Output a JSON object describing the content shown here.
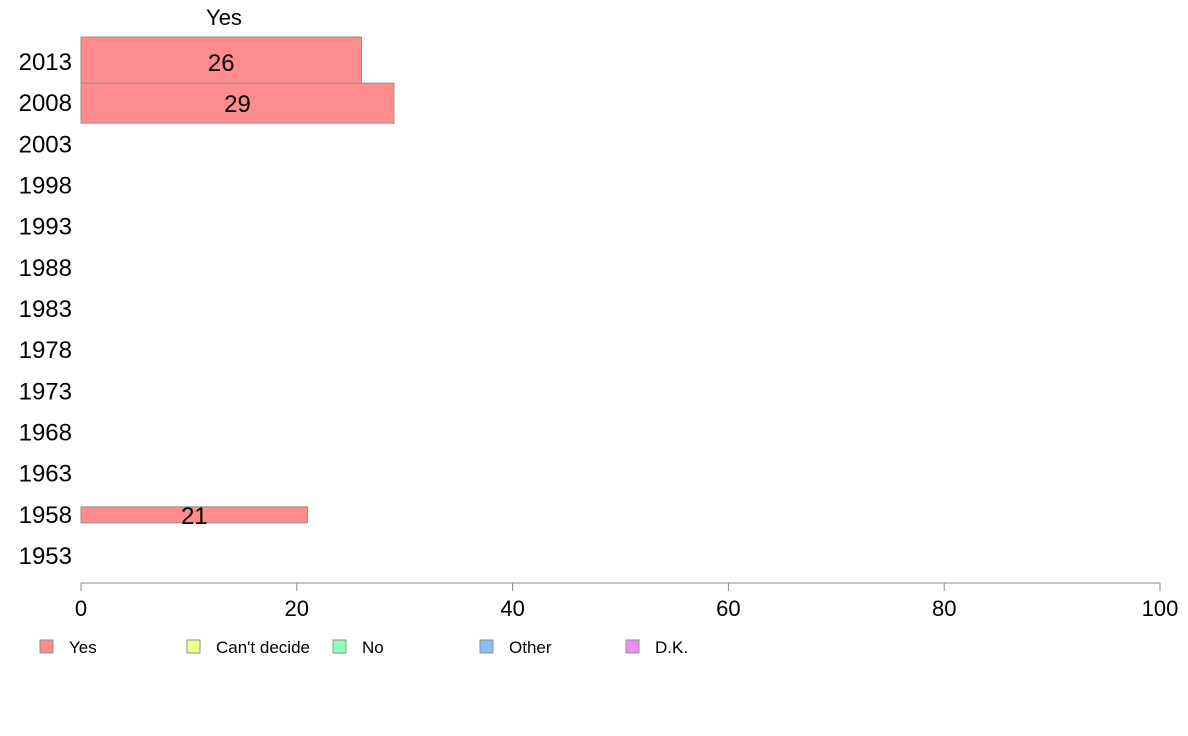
{
  "chart_data": {
    "type": "bar",
    "orientation": "horizontal",
    "title": "",
    "column_header": "Yes",
    "categories": [
      "2013",
      "2008",
      "2003",
      "1998",
      "1993",
      "1988",
      "1983",
      "1978",
      "1973",
      "1968",
      "1963",
      "1958",
      "1953"
    ],
    "series": [
      {
        "name": "Yes",
        "values": [
          26,
          29,
          null,
          null,
          null,
          null,
          null,
          null,
          null,
          null,
          null,
          21,
          null
        ],
        "labels": [
          "26",
          "29",
          "",
          "",
          "",
          "",
          "",
          "",
          "",
          "",
          "",
          "21",
          ""
        ],
        "color": "#ff8c8c"
      },
      {
        "name": "Can't decide",
        "values": [
          null,
          null,
          null,
          null,
          null,
          null,
          null,
          null,
          null,
          null,
          null,
          null,
          null
        ],
        "color": "#eeff8c"
      },
      {
        "name": "No",
        "values": [
          null,
          null,
          null,
          null,
          null,
          null,
          null,
          null,
          null,
          null,
          null,
          null,
          null
        ],
        "color": "#8cffbe"
      },
      {
        "name": "Other",
        "values": [
          null,
          null,
          null,
          null,
          null,
          null,
          null,
          null,
          null,
          null,
          null,
          null,
          null
        ],
        "color": "#8cbeff"
      },
      {
        "name": "D.K.",
        "values": [
          null,
          null,
          null,
          null,
          null,
          null,
          null,
          null,
          null,
          null,
          null,
          null,
          null
        ],
        "color": "#ee8cff"
      }
    ],
    "xlim": [
      0,
      100
    ],
    "xticks": [
      0,
      20,
      40,
      60,
      80,
      100
    ],
    "xlabel": "",
    "ylabel": "",
    "grid": false,
    "legend_position": "bottom-left"
  }
}
